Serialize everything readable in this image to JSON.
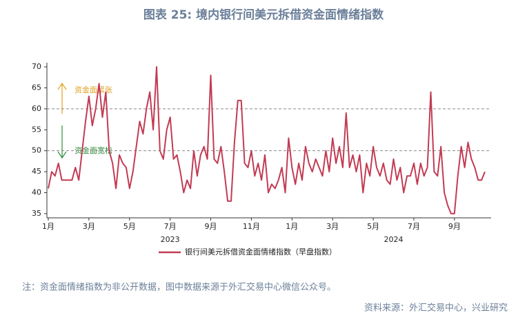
{
  "chart_data": {
    "type": "line",
    "title": "图表 25: 境内银行间美元拆借资金面情绪指数",
    "categories": [
      "1月",
      null,
      null,
      null,
      null,
      null,
      null,
      null,
      null,
      null,
      null,
      null,
      "3月",
      null,
      null,
      null,
      null,
      null,
      null,
      null,
      null,
      null,
      null,
      null,
      "5月",
      null,
      null,
      null,
      null,
      null,
      null,
      null,
      null,
      null,
      null,
      null,
      "7月",
      null,
      null,
      null,
      null,
      null,
      null,
      null,
      null,
      null,
      null,
      null,
      "9月",
      null,
      null,
      null,
      null,
      null,
      null,
      null,
      null,
      null,
      null,
      null,
      "11月",
      null,
      null,
      null,
      null,
      null,
      null,
      null,
      null,
      null,
      null,
      null,
      "1月",
      null,
      null,
      null,
      null,
      null,
      null,
      null,
      null,
      null,
      null,
      null,
      "3月",
      null,
      null,
      null,
      null,
      null,
      null,
      null,
      null,
      null,
      null,
      null,
      "5月",
      null,
      null,
      null,
      null,
      null,
      null,
      null,
      null,
      null,
      null,
      null,
      "7月",
      null,
      null,
      null,
      null,
      null,
      null,
      null,
      null,
      null,
      null,
      null,
      "9月",
      null,
      null,
      null,
      null,
      null,
      null,
      null,
      null,
      null
    ],
    "year_labels": [
      null,
      null,
      null,
      null,
      null,
      null,
      null,
      null,
      null,
      null,
      null,
      null,
      null,
      null,
      null,
      null,
      null,
      null,
      null,
      null,
      null,
      null,
      null,
      null,
      null,
      null,
      null,
      null,
      null,
      null,
      null,
      null,
      null,
      null,
      null,
      null,
      "2023",
      null,
      null,
      null,
      null,
      null,
      null,
      null,
      null,
      null,
      null,
      null,
      null,
      null,
      null,
      null,
      null,
      null,
      null,
      null,
      null,
      null,
      null,
      null,
      null,
      null,
      null,
      null,
      null,
      null,
      null,
      null,
      null,
      null,
      null,
      null,
      null,
      null,
      null,
      null,
      null,
      null,
      null,
      null,
      null,
      null,
      null,
      null,
      null,
      null,
      null,
      null,
      null,
      null,
      null,
      null,
      null,
      null,
      null,
      null,
      null,
      null,
      null,
      null,
      null,
      null,
      "2024",
      null,
      null,
      null,
      null,
      null,
      null,
      null,
      null,
      null,
      null,
      null,
      null,
      null,
      null,
      null,
      null,
      null,
      null,
      null,
      null,
      null,
      null,
      null,
      null,
      null,
      null,
      null
    ],
    "series": [
      {
        "name": "银行间美元拆借资金面情绪指数（早盘指数）",
        "color": "#c23a52",
        "values": [
          41,
          45,
          44,
          47,
          43,
          43,
          43,
          43,
          46,
          43,
          50,
          57,
          63,
          56,
          60,
          66,
          58,
          64,
          50,
          47,
          41,
          49,
          47,
          46,
          41,
          45,
          51,
          57,
          54,
          60,
          64,
          55,
          70,
          50,
          48,
          55,
          58,
          48,
          49,
          45,
          40,
          43,
          41,
          50,
          44,
          49,
          51,
          48,
          68,
          48,
          47,
          51,
          45,
          38,
          38,
          52,
          62,
          62,
          47,
          46,
          50,
          44,
          47,
          43,
          49,
          40,
          42,
          41,
          43,
          46,
          40,
          53,
          46,
          42,
          47,
          43,
          51,
          47,
          45,
          48,
          46,
          44,
          50,
          45,
          53,
          47,
          51,
          46,
          59,
          46,
          49,
          45,
          49,
          40,
          47,
          44,
          51,
          46,
          44,
          47,
          43,
          42,
          48,
          43,
          46,
          40,
          44,
          44,
          47,
          42,
          47,
          44,
          46,
          64,
          45,
          44,
          51,
          40,
          37,
          35,
          35,
          44,
          51,
          46,
          52,
          48,
          46,
          43,
          43,
          45
        ]
      }
    ],
    "ylim": [
      34,
      70
    ],
    "yticks": [
      35,
      40,
      45,
      50,
      55,
      60,
      65,
      70
    ],
    "hlines": [
      60,
      50
    ],
    "annotations": [
      {
        "text": "资金面紧张",
        "color": "#e0a020"
      },
      {
        "text": "资金面宽松",
        "color": "#2e8b3a"
      }
    ],
    "note": "注：资金面情绪指数为非公开数据，图中数据来源于外汇交易中心微信公众号。",
    "source": "资料来源：外汇交易中心，兴业研究"
  }
}
